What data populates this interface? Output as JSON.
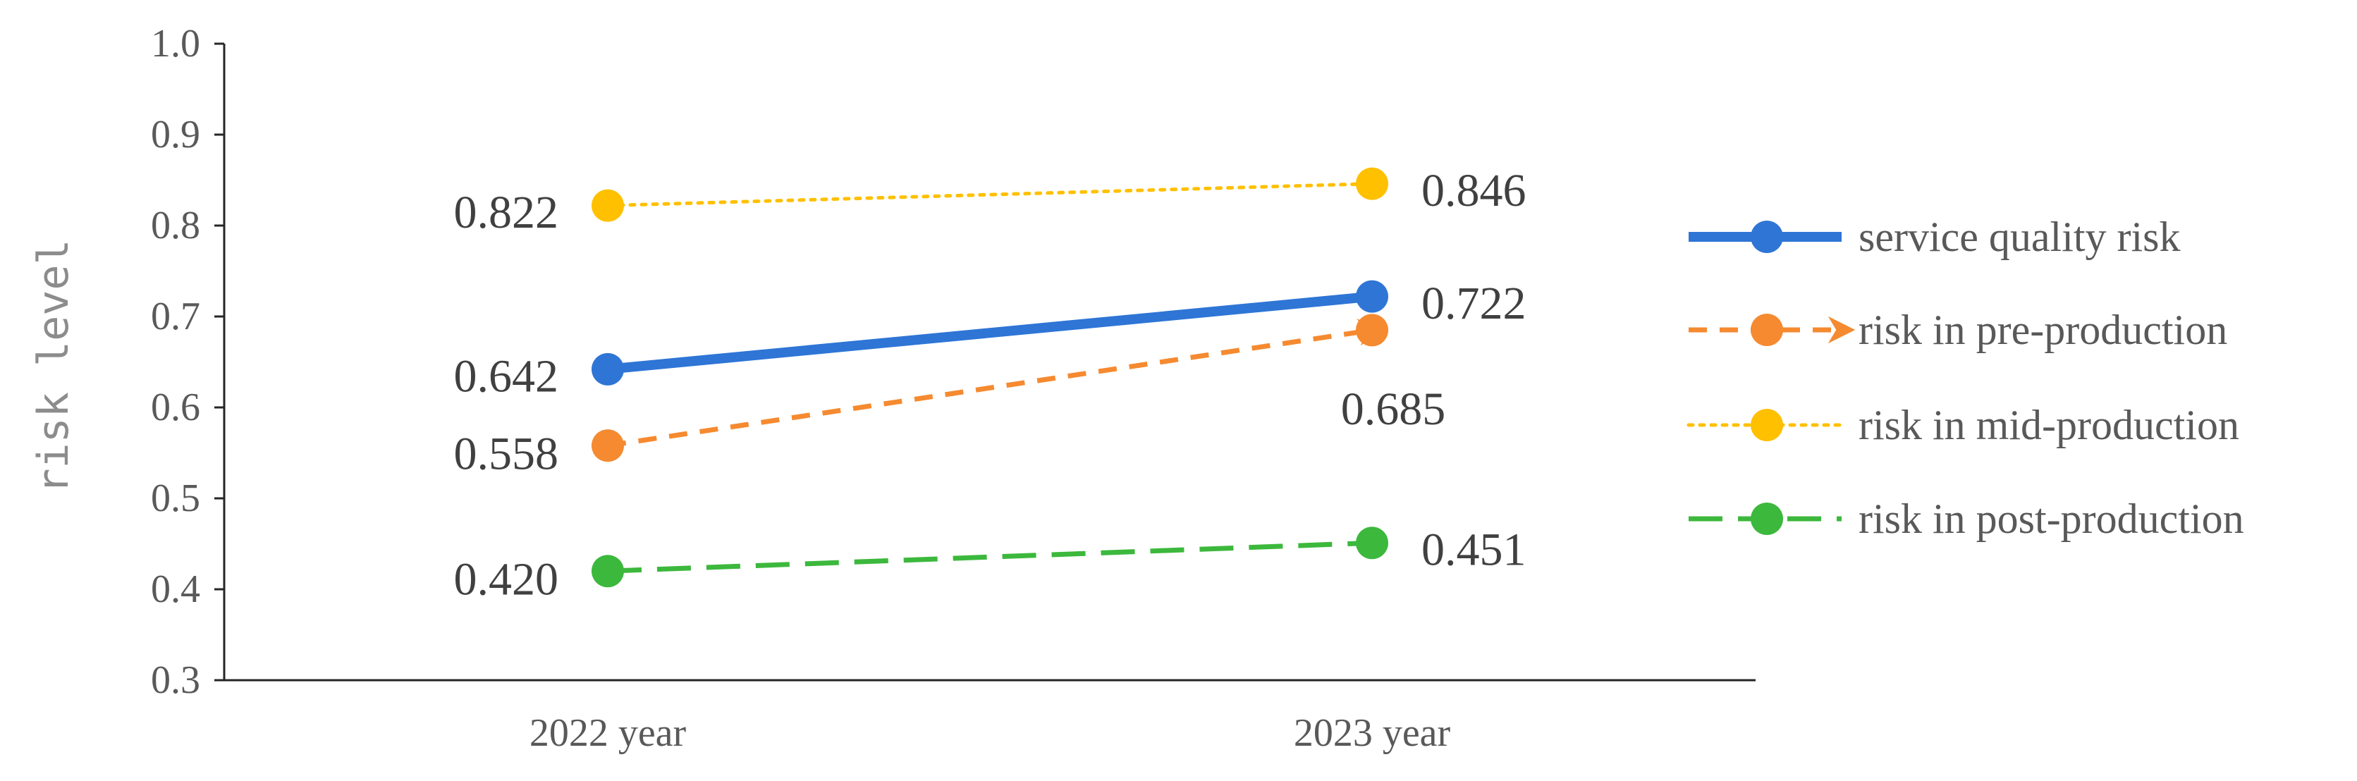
{
  "chart_data": {
    "type": "line",
    "categories": [
      "2022 year",
      "2023 year"
    ],
    "ylabel": "risk level",
    "ylim": [
      0.3,
      1.0
    ],
    "yticks": [
      "0.3",
      "0.4",
      "0.5",
      "0.6",
      "0.7",
      "0.8",
      "0.9",
      "1.0"
    ],
    "grid": false,
    "legend": "right",
    "series": [
      {
        "name": "service quality risk",
        "values": [
          0.642,
          0.722
        ],
        "labels": [
          "0.642",
          "0.722"
        ],
        "color": "#2e75d6",
        "dash": "solid",
        "arrow": false
      },
      {
        "name": "risk in pre-production",
        "values": [
          0.558,
          0.685
        ],
        "labels": [
          "0.558",
          "0.685"
        ],
        "color": "#f58a30",
        "dash": "dash",
        "arrow": true
      },
      {
        "name": "risk in mid-production",
        "values": [
          0.822,
          0.846
        ],
        "labels": [
          "0.822",
          "0.846"
        ],
        "color": "#ffc000",
        "dash": "dot",
        "arrow": false
      },
      {
        "name": "risk in post-production",
        "values": [
          0.42,
          0.451
        ],
        "labels": [
          "0.420",
          "0.451"
        ],
        "color": "#3cb83c",
        "dash": "longdash",
        "arrow": false
      }
    ]
  }
}
